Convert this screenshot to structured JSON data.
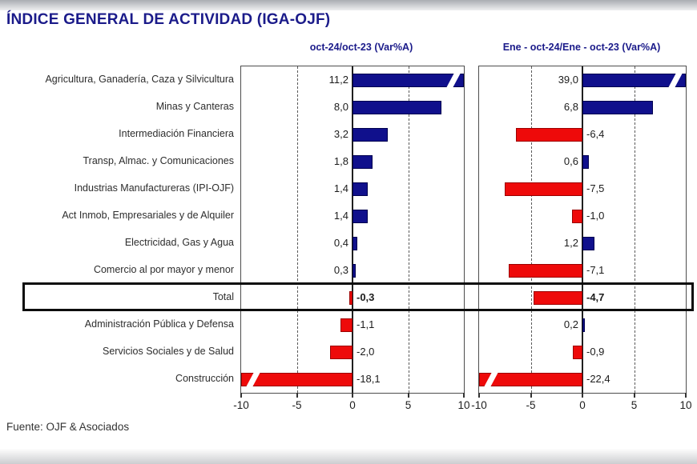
{
  "title": "ÍNDICE GENERAL DE ACTIVIDAD (IGA-OJF)",
  "source": "Fuente: OJF & Asociados",
  "panels": [
    {
      "header": "oct-24/oct-23  (Var%A)"
    },
    {
      "header": "Ene - oct-24/Ene - oct-23  (Var%A)"
    }
  ],
  "chart_data": {
    "type": "bar",
    "orientation": "horizontal",
    "title": "ÍNDICE GENERAL DE ACTIVIDAD (IGA-OJF)",
    "xlim": [
      -10,
      10
    ],
    "axis_ticks": [
      "-10",
      "-5",
      "0",
      "5",
      "10"
    ],
    "grid": "dashed verticals at -5 and +5, solid zero line, panel border box",
    "legend_position": "none",
    "highlighted_row": "Total",
    "axis_break_beyond": 10,
    "categories": [
      "Agricultura, Ganadería, Caza y Silvicultura",
      "Minas y Canteras",
      "Intermediación Financiera",
      "Transp, Almac. y Comunicaciones",
      "Industrias Manufactureras (IPI-OJF)",
      "Act Inmob, Empresariales y de Alquiler",
      "Electricidad, Gas y Agua",
      "Comercio al por mayor y menor",
      "Total",
      "Administración Pública y Defensa",
      "Servicios Sociales y de Salud",
      "Construcción"
    ],
    "series": [
      {
        "name": "oct-24/oct-23 (Var%A)",
        "values": [
          11.2,
          8.0,
          3.2,
          1.8,
          1.4,
          1.4,
          0.4,
          0.3,
          -0.3,
          -1.1,
          -2.0,
          -18.1
        ],
        "display": [
          "11,2",
          "8,0",
          "3,2",
          "1,8",
          "1,4",
          "1,4",
          "0,4",
          "0,3",
          "-0,3",
          "-1,1",
          "-2,0",
          "-18,1"
        ]
      },
      {
        "name": "Ene - oct-24/Ene - oct-23 (Var%A)",
        "values": [
          39.0,
          6.8,
          -6.4,
          0.6,
          -7.5,
          -1.0,
          1.2,
          -7.1,
          -4.7,
          0.2,
          -0.9,
          -22.4
        ],
        "display": [
          "39,0",
          "6,8",
          "-6,4",
          "0,6",
          "-7,5",
          "-1,0",
          "1,2",
          "-7,1",
          "-4,7",
          "0,2",
          "-0,9",
          "-22,4"
        ]
      }
    ],
    "colors": {
      "positive_bar": "#10108c",
      "negative_bar": "#ee0a0a",
      "title_text": "#1b1b8a",
      "highlight_box": "#0d0d0d"
    }
  }
}
